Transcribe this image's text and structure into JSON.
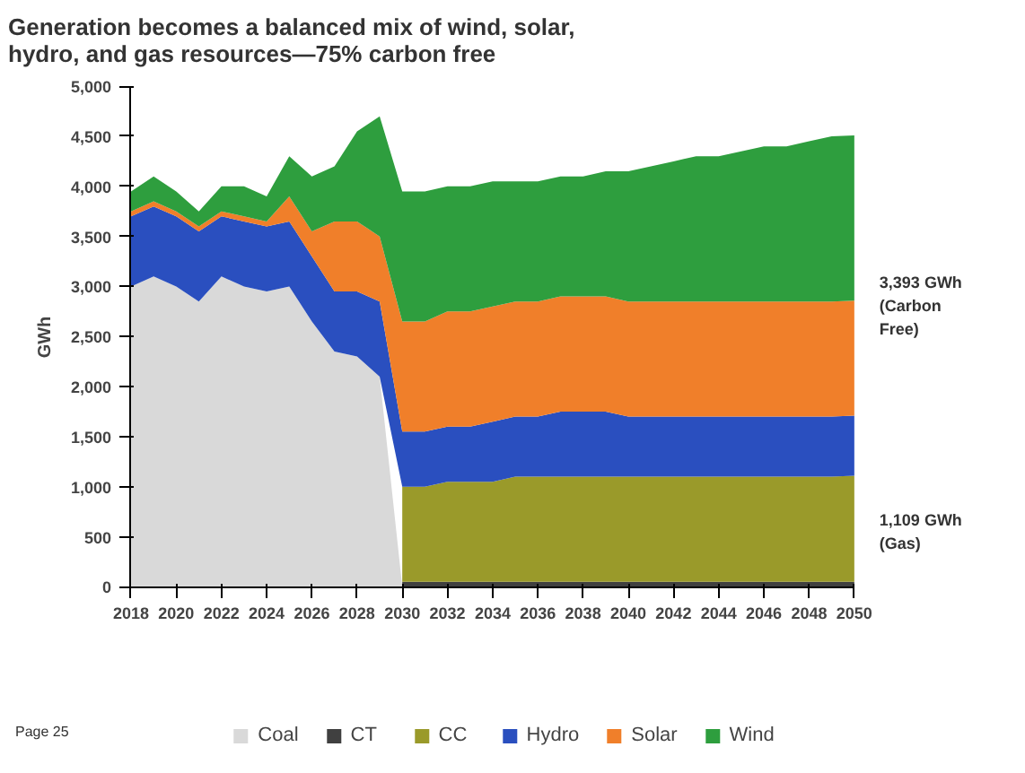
{
  "chart_data": {
    "type": "area",
    "stacked": true,
    "title": "Generation becomes a balanced mix of wind, solar,\nhydro, and gas resources—75% carbon free",
    "ylabel": "GWh",
    "x": [
      2018,
      2019,
      2020,
      2021,
      2022,
      2023,
      2024,
      2025,
      2026,
      2027,
      2028,
      2029,
      2030,
      2031,
      2032,
      2033,
      2034,
      2035,
      2036,
      2037,
      2038,
      2039,
      2040,
      2041,
      2042,
      2043,
      2044,
      2045,
      2046,
      2047,
      2048,
      2049,
      2050
    ],
    "series": [
      {
        "name": "Coal",
        "color": "#d9d9d9",
        "values": [
          3000,
          3100,
          3000,
          2850,
          3100,
          3000,
          2950,
          3000,
          2650,
          2350,
          2300,
          2100,
          0,
          0,
          0,
          0,
          0,
          0,
          0,
          0,
          0,
          0,
          0,
          0,
          0,
          0,
          0,
          0,
          0,
          0,
          0,
          0,
          0
        ]
      },
      {
        "name": "CT",
        "color": "#404040",
        "values": [
          null,
          null,
          null,
          null,
          null,
          null,
          null,
          null,
          null,
          null,
          null,
          null,
          50,
          50,
          50,
          50,
          50,
          50,
          50,
          50,
          50,
          50,
          50,
          50,
          50,
          50,
          50,
          50,
          50,
          50,
          50,
          50,
          50
        ]
      },
      {
        "name": "CC",
        "color": "#9a9a2a",
        "values": [
          null,
          null,
          null,
          null,
          null,
          null,
          null,
          null,
          null,
          null,
          null,
          null,
          950,
          950,
          1000,
          1000,
          1000,
          1050,
          1050,
          1050,
          1050,
          1050,
          1050,
          1050,
          1050,
          1050,
          1050,
          1050,
          1050,
          1050,
          1050,
          1050,
          1059
        ]
      },
      {
        "name": "Hydro",
        "color": "#2a4fbf",
        "values": [
          700,
          700,
          700,
          700,
          600,
          650,
          650,
          650,
          650,
          600,
          650,
          750,
          550,
          550,
          550,
          550,
          600,
          600,
          600,
          650,
          650,
          650,
          600,
          600,
          600,
          600,
          600,
          600,
          600,
          600,
          600,
          600,
          600
        ]
      },
      {
        "name": "Solar",
        "color": "#f07f2a",
        "values": [
          50,
          50,
          50,
          50,
          50,
          50,
          50,
          250,
          250,
          700,
          700,
          650,
          1100,
          1100,
          1150,
          1150,
          1150,
          1150,
          1150,
          1150,
          1150,
          1150,
          1150,
          1150,
          1150,
          1150,
          1150,
          1150,
          1150,
          1150,
          1150,
          1150,
          1150
        ]
      },
      {
        "name": "Wind",
        "color": "#2e9e3e",
        "values": [
          200,
          250,
          200,
          150,
          250,
          300,
          250,
          400,
          550,
          550,
          900,
          1200,
          1300,
          1300,
          1250,
          1250,
          1250,
          1200,
          1200,
          1200,
          1200,
          1250,
          1300,
          1350,
          1400,
          1450,
          1450,
          1500,
          1550,
          1550,
          1600,
          1650,
          1650
        ]
      }
    ],
    "xlim": [
      2018,
      2050
    ],
    "xticks": [
      2018,
      2020,
      2022,
      2024,
      2026,
      2028,
      2030,
      2032,
      2034,
      2036,
      2038,
      2040,
      2042,
      2044,
      2046,
      2048,
      2050
    ],
    "ylim": [
      0,
      5000
    ],
    "yticks": [
      0,
      500,
      {
        "value": 1000,
        "label": "1,000"
      },
      {
        "value": 1500,
        "label": "1,500"
      },
      {
        "value": 2000,
        "label": "2,000"
      },
      {
        "value": 2500,
        "label": "2,500"
      },
      {
        "value": 3000,
        "label": "3,000"
      },
      {
        "value": 3500,
        "label": "3,500"
      },
      {
        "value": 4000,
        "label": "4,000"
      },
      {
        "value": 4500,
        "label": "4,500"
      },
      {
        "value": 5000,
        "label": "5,000"
      }
    ],
    "annotations": [
      {
        "text": "3,393 GWh\n(Carbon\nFree)",
        "x": 2050,
        "y": 2805
      },
      {
        "text": "1,109 GWh\n(Gas)",
        "x": 2050,
        "y": 554
      },
      "Page 25"
    ],
    "grid": false,
    "legend": "bottom"
  }
}
